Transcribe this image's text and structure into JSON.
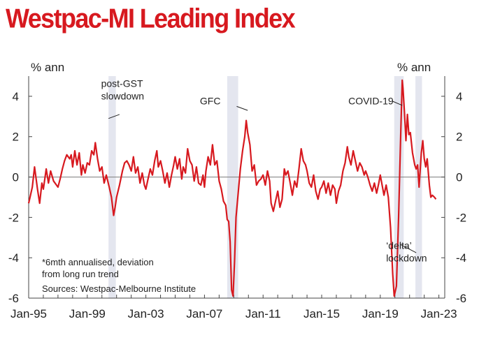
{
  "title": "Westpac-MI Leading Index",
  "colors": {
    "title": "#d7191f",
    "series": "#d7191f",
    "shade": "#e4e6ef",
    "axis": "#444444",
    "zero_line": "#888888"
  },
  "chart_data": {
    "type": "line",
    "title": "Westpac-MI Leading Index",
    "ylabel_left": "% ann",
    "ylabel_right": "% ann",
    "ylim": [
      -6,
      5
    ],
    "yticks": [
      -6,
      -4,
      -2,
      0,
      2,
      4
    ],
    "xlim": [
      1995.0,
      2023.4
    ],
    "x_tick_labels": [
      "Jan-95",
      "Jan-99",
      "Jan-03",
      "Jan-07",
      "Jan-11",
      "Jan-15",
      "Jan-19",
      "Jan-23"
    ],
    "x_tick_values": [
      1995,
      1999,
      2003,
      2007,
      2011,
      2015,
      2019,
      2023
    ],
    "shaded_periods": [
      {
        "label": "post-GST slowdown",
        "start": 2000.45,
        "end": 2000.95
      },
      {
        "label": "GFC",
        "start": 2008.55,
        "end": 2009.3
      },
      {
        "label": "COVID-19",
        "start": 2019.95,
        "end": 2020.6
      },
      {
        "label": "'delta' lockdown",
        "start": 2021.4,
        "end": 2021.85
      }
    ],
    "annotations": [
      {
        "lines": [
          "post-GST",
          "slowdown"
        ],
        "x": 2000.9,
        "y": 4.1
      },
      {
        "lines": [
          "GFC"
        ],
        "x": 2008.8,
        "y": 3.4
      },
      {
        "lines": [
          "COVID-19"
        ],
        "x": 2020.3,
        "y": 3.6
      },
      {
        "lines": [
          "‘delta’",
          "lockdown"
        ],
        "x": 2021.6,
        "y": -3.95
      }
    ],
    "notes": [
      "*6mth annualised, deviation",
      "from long run trend"
    ],
    "source": "Sources: Westpac-Melbourne Institute",
    "series": [
      {
        "name": "Westpac-MI Leading Index (*6mth annualised, deviation from long run trend)",
        "points": [
          [
            1995.0,
            -1.3
          ],
          [
            1995.25,
            -0.5
          ],
          [
            1995.4,
            0.5
          ],
          [
            1995.6,
            -0.6
          ],
          [
            1995.75,
            -1.3
          ],
          [
            1995.9,
            -0.3
          ],
          [
            1996.0,
            -0.6
          ],
          [
            1996.2,
            0.4
          ],
          [
            1996.35,
            -0.3
          ],
          [
            1996.5,
            0.3
          ],
          [
            1996.7,
            -0.2
          ],
          [
            1996.9,
            -0.4
          ],
          [
            1997.0,
            -0.5
          ],
          [
            1997.15,
            -0.1
          ],
          [
            1997.3,
            0.4
          ],
          [
            1997.45,
            0.8
          ],
          [
            1997.6,
            1.1
          ],
          [
            1997.8,
            0.9
          ],
          [
            1997.9,
            1.1
          ],
          [
            1998.0,
            0.5
          ],
          [
            1998.15,
            1.3
          ],
          [
            1998.3,
            0.6
          ],
          [
            1998.45,
            1.2
          ],
          [
            1998.6,
            0.1
          ],
          [
            1998.7,
            0.6
          ],
          [
            1998.85,
            0.2
          ],
          [
            1999.0,
            0.7
          ],
          [
            1999.15,
            0.6
          ],
          [
            1999.3,
            1.3
          ],
          [
            1999.45,
            1.1
          ],
          [
            1999.55,
            1.7
          ],
          [
            1999.7,
            0.9
          ],
          [
            1999.85,
            0.3
          ],
          [
            2000.0,
            0.5
          ],
          [
            2000.15,
            -0.3
          ],
          [
            2000.3,
            0.1
          ],
          [
            2000.5,
            -0.5
          ],
          [
            2000.65,
            -1.0
          ],
          [
            2000.8,
            -1.9
          ],
          [
            2000.9,
            -1.5
          ],
          [
            2001.0,
            -1.0
          ],
          [
            2001.2,
            -0.4
          ],
          [
            2001.4,
            0.3
          ],
          [
            2001.55,
            0.7
          ],
          [
            2001.7,
            0.8
          ],
          [
            2001.85,
            0.6
          ],
          [
            2002.0,
            0.3
          ],
          [
            2002.15,
            1.0
          ],
          [
            2002.3,
            0.2
          ],
          [
            2002.45,
            0.5
          ],
          [
            2002.6,
            -0.3
          ],
          [
            2002.75,
            0.2
          ],
          [
            2002.9,
            -0.4
          ],
          [
            2003.0,
            -0.6
          ],
          [
            2003.15,
            -0.1
          ],
          [
            2003.3,
            0.4
          ],
          [
            2003.45,
            0.1
          ],
          [
            2003.6,
            0.8
          ],
          [
            2003.75,
            1.3
          ],
          [
            2003.85,
            0.5
          ],
          [
            2004.0,
            0.8
          ],
          [
            2004.15,
            0.3
          ],
          [
            2004.3,
            -0.3
          ],
          [
            2004.45,
            0.2
          ],
          [
            2004.6,
            -0.5
          ],
          [
            2004.75,
            0.1
          ],
          [
            2004.9,
            0.6
          ],
          [
            2005.0,
            1.0
          ],
          [
            2005.15,
            0.4
          ],
          [
            2005.3,
            0.9
          ],
          [
            2005.45,
            -0.1
          ],
          [
            2005.55,
            0.5
          ],
          [
            2005.7,
            0.2
          ],
          [
            2005.85,
            1.4
          ],
          [
            2006.0,
            0.8
          ],
          [
            2006.15,
            0.6
          ],
          [
            2006.3,
            -0.2
          ],
          [
            2006.45,
            0.5
          ],
          [
            2006.6,
            -0.3
          ],
          [
            2006.75,
            -0.4
          ],
          [
            2006.9,
            0.1
          ],
          [
            2007.0,
            -0.5
          ],
          [
            2007.1,
            0.3
          ],
          [
            2007.25,
            1.0
          ],
          [
            2007.4,
            0.6
          ],
          [
            2007.55,
            1.6
          ],
          [
            2007.7,
            0.6
          ],
          [
            2007.85,
            0.8
          ],
          [
            2008.0,
            -0.2
          ],
          [
            2008.15,
            -0.6
          ],
          [
            2008.3,
            -1.2
          ],
          [
            2008.45,
            -1.4
          ],
          [
            2008.55,
            -2.1
          ],
          [
            2008.65,
            -2.2
          ],
          [
            2008.75,
            -3.2
          ],
          [
            2008.85,
            -5.6
          ],
          [
            2008.95,
            -5.9
          ],
          [
            2009.05,
            -4.2
          ],
          [
            2009.15,
            -2.0
          ],
          [
            2009.3,
            -0.8
          ],
          [
            2009.45,
            0.4
          ],
          [
            2009.6,
            1.3
          ],
          [
            2009.75,
            2.0
          ],
          [
            2009.85,
            2.8
          ],
          [
            2009.95,
            2.2
          ],
          [
            2010.1,
            1.6
          ],
          [
            2010.25,
            0.3
          ],
          [
            2010.4,
            0.6
          ],
          [
            2010.55,
            -0.4
          ],
          [
            2010.7,
            -0.2
          ],
          [
            2010.85,
            -0.1
          ],
          [
            2011.0,
            0.1
          ],
          [
            2011.15,
            -0.4
          ],
          [
            2011.3,
            0.3
          ],
          [
            2011.45,
            -0.2
          ],
          [
            2011.55,
            -1.3
          ],
          [
            2011.7,
            -1.7
          ],
          [
            2011.85,
            -1.2
          ],
          [
            2012.0,
            -0.7
          ],
          [
            2012.15,
            -1.5
          ],
          [
            2012.3,
            -1.1
          ],
          [
            2012.45,
            0.4
          ],
          [
            2012.55,
            0.1
          ],
          [
            2012.7,
            0.3
          ],
          [
            2012.85,
            -0.3
          ],
          [
            2013.0,
            -0.9
          ],
          [
            2013.15,
            -0.2
          ],
          [
            2013.3,
            -0.5
          ],
          [
            2013.45,
            0.4
          ],
          [
            2013.6,
            1.4
          ],
          [
            2013.75,
            0.8
          ],
          [
            2013.9,
            0.6
          ],
          [
            2014.0,
            0.3
          ],
          [
            2014.15,
            -0.3
          ],
          [
            2014.3,
            -0.5
          ],
          [
            2014.45,
            0.1
          ],
          [
            2014.6,
            -0.7
          ],
          [
            2014.75,
            -1.1
          ],
          [
            2014.9,
            -0.6
          ],
          [
            2015.0,
            -0.5
          ],
          [
            2015.15,
            -0.2
          ],
          [
            2015.3,
            -0.8
          ],
          [
            2015.45,
            -0.3
          ],
          [
            2015.6,
            -0.9
          ],
          [
            2015.75,
            -0.4
          ],
          [
            2015.9,
            -0.6
          ],
          [
            2016.0,
            -1.3
          ],
          [
            2016.15,
            -0.7
          ],
          [
            2016.3,
            -0.4
          ],
          [
            2016.45,
            0.3
          ],
          [
            2016.6,
            0.7
          ],
          [
            2016.75,
            1.5
          ],
          [
            2016.85,
            1.0
          ],
          [
            2017.0,
            0.6
          ],
          [
            2017.15,
            1.3
          ],
          [
            2017.3,
            0.8
          ],
          [
            2017.45,
            0.3
          ],
          [
            2017.6,
            0.7
          ],
          [
            2017.75,
            0.5
          ],
          [
            2017.9,
            0.1
          ],
          [
            2018.0,
            0.3
          ],
          [
            2018.15,
            0.0
          ],
          [
            2018.3,
            -0.4
          ],
          [
            2018.45,
            -0.7
          ],
          [
            2018.6,
            -0.3
          ],
          [
            2018.75,
            -0.8
          ],
          [
            2018.9,
            -0.3
          ],
          [
            2019.0,
            0.1
          ],
          [
            2019.1,
            -0.3
          ],
          [
            2019.25,
            -0.9
          ],
          [
            2019.4,
            -0.4
          ],
          [
            2019.55,
            -1.0
          ],
          [
            2019.7,
            -2.5
          ],
          [
            2019.85,
            -4.8
          ],
          [
            2019.95,
            -5.9
          ],
          [
            2020.1,
            -5.4
          ],
          [
            2020.25,
            -2.0
          ],
          [
            2020.4,
            2.2
          ],
          [
            2020.5,
            4.8
          ],
          [
            2020.55,
            4.4
          ],
          [
            2020.65,
            3.2
          ],
          [
            2020.75,
            1.8
          ],
          [
            2020.85,
            3.1
          ],
          [
            2020.95,
            2.1
          ],
          [
            2021.05,
            2.2
          ],
          [
            2021.2,
            1.2
          ],
          [
            2021.35,
            0.6
          ],
          [
            2021.45,
            0.4
          ],
          [
            2021.55,
            0.6
          ],
          [
            2021.65,
            -0.5
          ],
          [
            2021.8,
            1.2
          ],
          [
            2021.9,
            1.8
          ],
          [
            2022.0,
            0.9
          ],
          [
            2022.1,
            0.5
          ],
          [
            2022.2,
            0.9
          ],
          [
            2022.35,
            -0.4
          ],
          [
            2022.45,
            -1.0
          ],
          [
            2022.55,
            -0.9
          ],
          [
            2022.7,
            -1.0
          ],
          [
            2022.8,
            -1.1
          ]
        ]
      }
    ]
  }
}
